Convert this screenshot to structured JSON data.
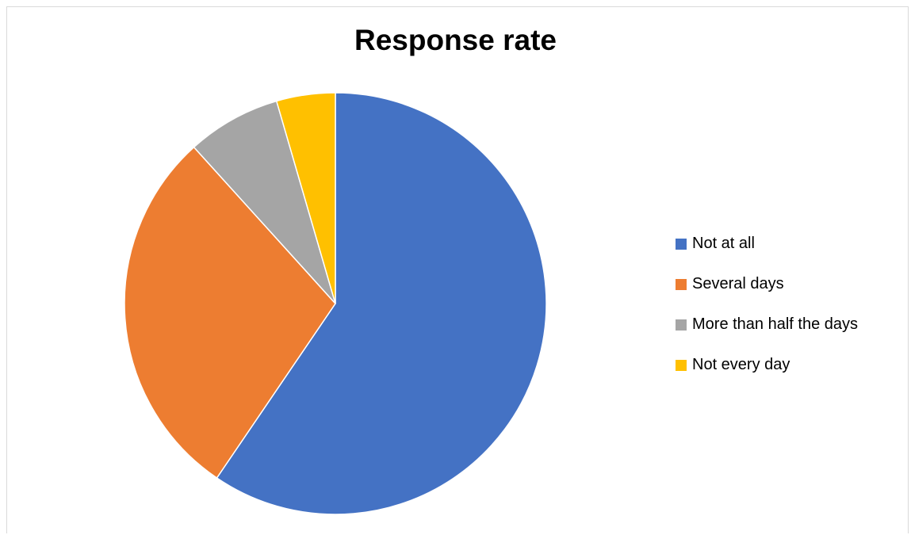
{
  "chart_data": {
    "type": "pie",
    "title": "Response rate",
    "legend_position": "right",
    "categories": [
      "Not at all",
      "Several days",
      "More than half the days",
      "Not every day"
    ],
    "values": [
      59.5,
      28.8,
      7.2,
      4.5
    ],
    "colors": [
      "#4472C4",
      "#ED7D31",
      "#A5A5A5",
      "#FFC000"
    ]
  }
}
